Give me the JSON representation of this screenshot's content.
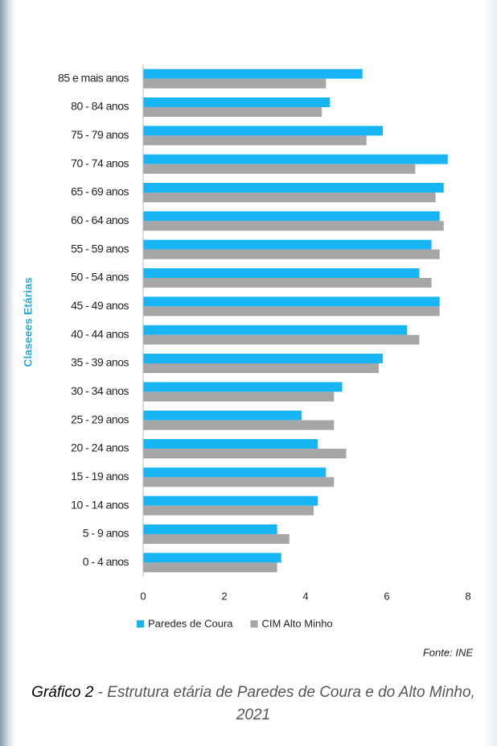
{
  "chart_data": {
    "type": "bar",
    "orientation": "horizontal",
    "y_label": "Claseees Etárias",
    "categories": [
      "85 e mais anos",
      "80 - 84 anos",
      "75 - 79 anos",
      "70 - 74 anos",
      "65 - 69 anos",
      "60 - 64 anos",
      "55 - 59 anos",
      "50 - 54 anos",
      "45 - 49 anos",
      "40 - 44 anos",
      "35 - 39 anos",
      "30 - 34 anos",
      "25 - 29 anos",
      "20 - 24 anos",
      "15 - 19 anos",
      "10 - 14 anos",
      "5 - 9 anos",
      "0 - 4 anos"
    ],
    "series": [
      {
        "name": "Paredes de Coura",
        "color": "#17b5f3",
        "values": [
          5.4,
          4.6,
          5.9,
          7.5,
          7.4,
          7.3,
          7.1,
          6.8,
          7.3,
          6.5,
          5.9,
          4.9,
          3.9,
          4.3,
          4.5,
          4.3,
          3.3,
          3.4
        ]
      },
      {
        "name": "CIM Alto Minho",
        "color": "#a6a6a6",
        "values": [
          4.5,
          4.4,
          5.5,
          6.7,
          7.2,
          7.4,
          7.3,
          7.1,
          7.3,
          6.8,
          5.8,
          4.7,
          4.7,
          5.0,
          4.7,
          4.2,
          3.6,
          3.3
        ]
      }
    ],
    "xlim": [
      0,
      8
    ],
    "xticks": [
      0,
      2,
      4,
      6,
      8
    ],
    "legend": "bottom",
    "source": "Fonte: INE",
    "caption_label": "Gráfico 2",
    "caption_text": " - Estrutura etária de Paredes de Coura e do Alto Minho, 2021"
  }
}
